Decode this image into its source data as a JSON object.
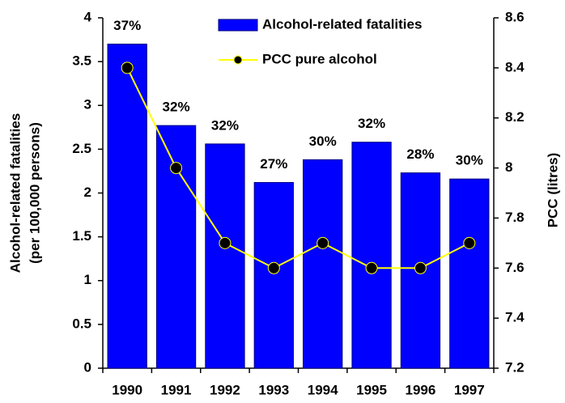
{
  "chart_data": {
    "type": "bar_line",
    "categories": [
      "1990",
      "1991",
      "1992",
      "1993",
      "1994",
      "1995",
      "1996",
      "1997"
    ],
    "series": [
      {
        "name": "Alcohol-related fatalities",
        "type": "bar",
        "color": "#0000ff",
        "values": [
          3.7,
          2.77,
          2.56,
          2.12,
          2.38,
          2.58,
          2.23,
          2.16
        ]
      },
      {
        "name": "PCC pure alcohol",
        "type": "line",
        "axis": "y2",
        "color": "#ffff00",
        "marker_color": "#000000",
        "values": [
          8.4,
          8.0,
          7.7,
          7.6,
          7.7,
          7.6,
          7.6,
          7.7
        ]
      }
    ],
    "bar_annotations": [
      "37%",
      "32%",
      "32%",
      "27%",
      "30%",
      "32%",
      "28%",
      "30%"
    ],
    "ylabel_lines": [
      "Alcohol-related  fatalities",
      "(per 100,000 persons)"
    ],
    "y2label": "PCC (litres)",
    "ylim": [
      0,
      4
    ],
    "yticks": [
      0,
      0.5,
      1,
      1.5,
      2,
      2.5,
      3,
      3.5,
      4
    ],
    "y2lim": [
      7.2,
      8.6
    ],
    "y2ticks": [
      7.2,
      7.4,
      7.6,
      7.8,
      8,
      8.2,
      8.4,
      8.6
    ],
    "grid": false
  }
}
